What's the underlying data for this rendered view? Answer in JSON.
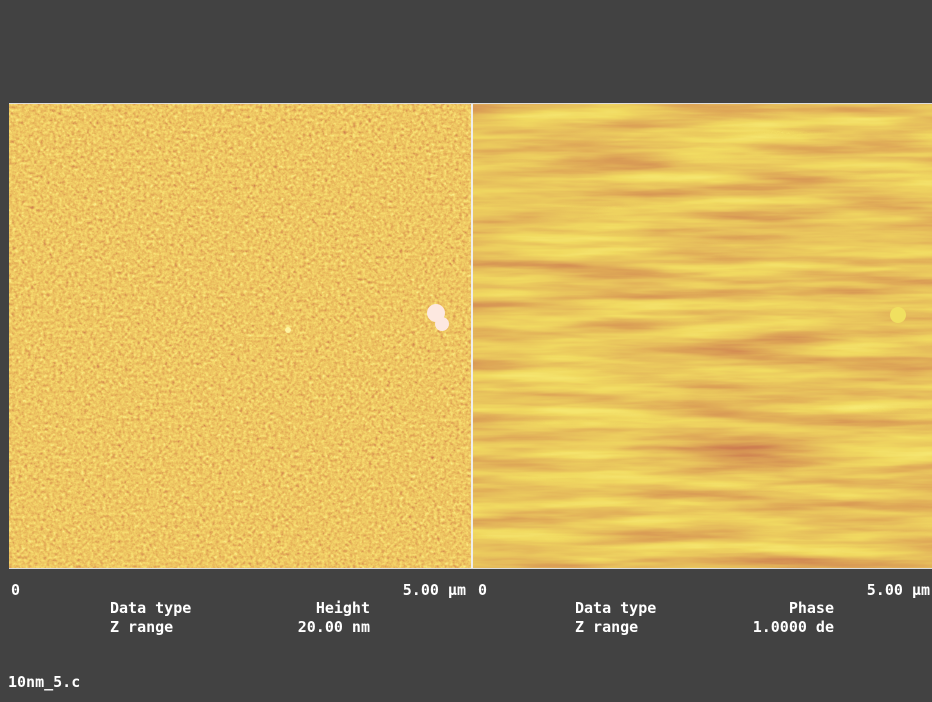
{
  "panels": [
    {
      "scale": {
        "start": "0",
        "end": "5.00 µm"
      },
      "info": [
        {
          "label": "Data type",
          "value": "Height"
        },
        {
          "label": "Z range",
          "value": "20.00 nm"
        }
      ]
    },
    {
      "scale": {
        "start": "0",
        "end": "5.00 µm"
      },
      "info": [
        {
          "label": "Data type",
          "value": "Phase"
        },
        {
          "label": "Z range",
          "value": "1.0000 de"
        }
      ]
    }
  ],
  "filename": "10nm_5.c"
}
